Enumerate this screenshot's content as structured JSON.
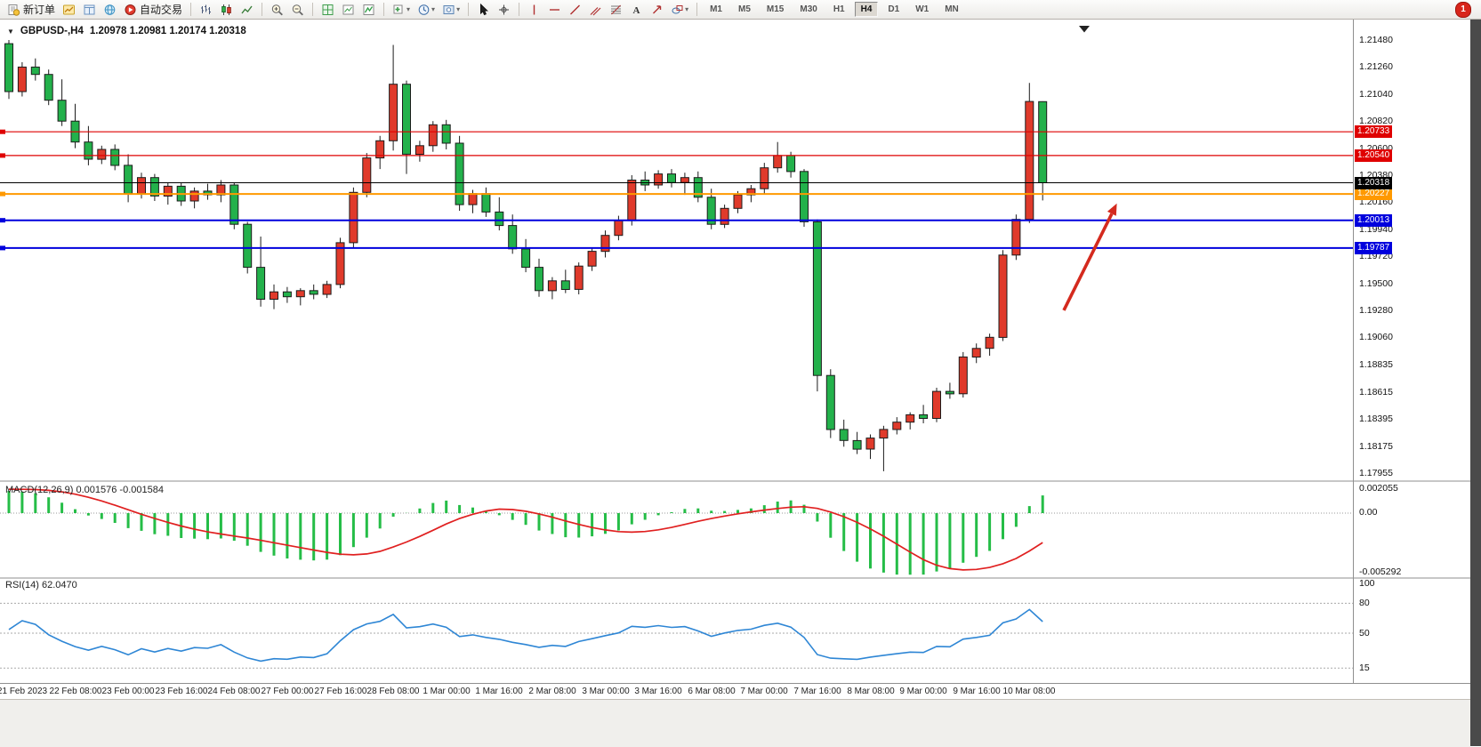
{
  "toolbar": {
    "timeframes": [
      "M1",
      "M5",
      "M15",
      "M30",
      "H1",
      "H4",
      "D1",
      "W1",
      "MN"
    ],
    "active_timeframe": "H4",
    "notification_count": "1",
    "items": [
      {
        "kind": "button",
        "name": "new-order-button",
        "icon": "new-order-icon",
        "label": "新订单"
      },
      {
        "kind": "icon",
        "name": "market-watch-icon"
      },
      {
        "kind": "icon",
        "name": "data-window-icon"
      },
      {
        "kind": "icon",
        "name": "navigator-icon"
      },
      {
        "kind": "button",
        "name": "auto-trading-button",
        "icon": "auto-trading-icon",
        "label": "自动交易"
      },
      {
        "kind": "sep"
      },
      {
        "kind": "icon",
        "name": "bar-chart-icon"
      },
      {
        "kind": "icon",
        "name": "candlestick-chart-icon"
      },
      {
        "kind": "icon",
        "name": "line-chart-icon"
      },
      {
        "kind": "sep"
      },
      {
        "kind": "icon",
        "name": "zoom-in-icon"
      },
      {
        "kind": "icon",
        "name": "zoom-out-icon"
      },
      {
        "kind": "sep"
      },
      {
        "kind": "icon",
        "name": "tile-windows-icon"
      },
      {
        "kind": "icon",
        "name": "chart-window-icon"
      },
      {
        "kind": "icon",
        "name": "indicators-icon"
      },
      {
        "kind": "sep"
      },
      {
        "kind": "icon",
        "name": "new-chart-icon",
        "caret": true
      },
      {
        "kind": "icon",
        "name": "period-icon",
        "caret": true
      },
      {
        "kind": "icon",
        "name": "template-icon",
        "caret": true
      },
      {
        "kind": "sep"
      },
      {
        "kind": "icon",
        "name": "cursor-icon"
      },
      {
        "kind": "icon",
        "name": "crosshair-icon"
      },
      {
        "kind": "sep"
      },
      {
        "kind": "icon",
        "name": "vertical-line-icon"
      },
      {
        "kind": "icon",
        "name": "horizontal-line-icon"
      },
      {
        "kind": "icon",
        "name": "trendline-icon"
      },
      {
        "kind": "icon",
        "name": "equidistant-channel-icon"
      },
      {
        "kind": "icon",
        "name": "fibonacci-icon"
      },
      {
        "kind": "icon",
        "name": "text-icon"
      },
      {
        "kind": "icon",
        "name": "arrows-icon"
      },
      {
        "kind": "icon",
        "name": "shapes-icon",
        "caret": true
      },
      {
        "kind": "sep"
      },
      {
        "kind": "timeframes"
      },
      {
        "kind": "badge",
        "name": "notification-badge"
      }
    ]
  },
  "chart": {
    "symbol_timeframe": "GBPUSD-,H4",
    "ohlc": "1.20978 1.20981 1.20174 1.20318",
    "levels": [
      {
        "label": "1.20733",
        "price": 1.20733,
        "color": "#df0000",
        "width": 1.2
      },
      {
        "label": "1.20540",
        "price": 1.2054,
        "color": "#df0000",
        "width": 1.2
      },
      {
        "label": "1.20227",
        "price": 1.20227,
        "color": "#ff9900",
        "width": 2
      },
      {
        "label": "1.20013",
        "price": 1.20013,
        "color": "#0000dd",
        "width": 2
      },
      {
        "label": "1.19787",
        "price": 1.19787,
        "color": "#0000dd",
        "width": 2
      }
    ],
    "current_price": {
      "label": "1.20318",
      "price": 1.20318,
      "color": "#000000"
    },
    "annotation_arrow": {
      "color": "#d42a1e",
      "from_bar": 79.6,
      "from_price": 1.1928,
      "to_bar": 83.6,
      "to_price": 1.2015
    }
  },
  "chart_data": {
    "type": "candlestick",
    "symbol": "GBPUSD",
    "period": "H4",
    "up_color": "#e03a2b",
    "down_color": "#23b14b",
    "outline_color": "#1c1c1c",
    "y_ticks": [
      "1.21480",
      "1.21260",
      "1.21040",
      "1.20820",
      "1.20600",
      "1.20380",
      "1.20160",
      "1.19940",
      "1.19720",
      "1.19500",
      "1.19280",
      "1.19060",
      "1.18835",
      "1.18615",
      "1.18395",
      "1.18175",
      "1.17955"
    ],
    "x_labels": [
      "21 Feb 2023",
      "22 Feb 08:00",
      "23 Feb 00:00",
      "23 Feb 16:00",
      "24 Feb 08:00",
      "27 Feb 00:00",
      "27 Feb 16:00",
      "28 Feb 08:00",
      "1 Mar 00:00",
      "1 Mar 16:00",
      "2 Mar 08:00",
      "3 Mar 00:00",
      "3 Mar 16:00",
      "6 Mar 08:00",
      "7 Mar 00:00",
      "7 Mar 16:00",
      "8 Mar 08:00",
      "9 Mar 00:00",
      "9 Mar 16:00",
      "10 Mar 08:00"
    ],
    "candles": [
      [
        1.2145,
        1.2148,
        1.21,
        1.2106
      ],
      [
        1.2106,
        1.213,
        1.2102,
        1.2126
      ],
      [
        1.2126,
        1.2133,
        1.2115,
        1.212
      ],
      [
        1.212,
        1.2124,
        1.2095,
        1.2099
      ],
      [
        1.2099,
        1.2116,
        1.2078,
        1.2082
      ],
      [
        1.2082,
        1.2096,
        1.206,
        1.2065
      ],
      [
        1.2065,
        1.2078,
        1.2046,
        1.2051
      ],
      [
        1.2051,
        1.2062,
        1.2047,
        1.2059
      ],
      [
        1.2059,
        1.2063,
        1.2042,
        1.2046
      ],
      [
        1.2046,
        1.2055,
        1.2016,
        1.2023
      ],
      [
        1.2023,
        1.204,
        1.2019,
        1.2036
      ],
      [
        1.2036,
        1.2039,
        1.2017,
        1.2021
      ],
      [
        1.2021,
        1.2032,
        1.2014,
        1.2029
      ],
      [
        1.2029,
        1.2032,
        1.2013,
        1.2017
      ],
      [
        1.2017,
        1.2028,
        1.2011,
        1.2025
      ],
      [
        1.2025,
        1.2031,
        1.2018,
        1.2022
      ],
      [
        1.2022,
        1.2034,
        1.2016,
        1.203
      ],
      [
        1.203,
        1.2032,
        1.1994,
        1.1998
      ],
      [
        1.1998,
        1.2,
        1.1958,
        1.1963
      ],
      [
        1.1963,
        1.1988,
        1.1931,
        1.1937
      ],
      [
        1.1937,
        1.1949,
        1.1929,
        1.1943
      ],
      [
        1.1943,
        1.1947,
        1.1934,
        1.1939
      ],
      [
        1.1939,
        1.1946,
        1.1932,
        1.1944
      ],
      [
        1.1944,
        1.1949,
        1.1937,
        1.1941
      ],
      [
        1.1941,
        1.1952,
        1.1938,
        1.1949
      ],
      [
        1.1949,
        1.1987,
        1.1946,
        1.1983
      ],
      [
        1.1983,
        1.2028,
        1.1979,
        1.2024
      ],
      [
        1.2024,
        1.2056,
        1.202,
        1.2052
      ],
      [
        1.2052,
        1.207,
        1.2043,
        1.2066
      ],
      [
        1.2066,
        1.2144,
        1.2058,
        1.2112
      ],
      [
        1.2112,
        1.2115,
        1.2039,
        1.2055
      ],
      [
        1.2055,
        1.2066,
        1.2049,
        1.2062
      ],
      [
        1.2062,
        1.2082,
        1.2057,
        1.2079
      ],
      [
        1.2079,
        1.2083,
        1.2059,
        1.2064
      ],
      [
        1.2064,
        1.207,
        1.2009,
        1.2014
      ],
      [
        1.2014,
        1.2026,
        1.2007,
        1.2023
      ],
      [
        1.2023,
        1.2028,
        1.2004,
        1.2008
      ],
      [
        1.2008,
        1.202,
        1.1993,
        1.1997
      ],
      [
        1.1997,
        1.2006,
        1.1974,
        1.1978
      ],
      [
        1.1978,
        1.1986,
        1.1959,
        1.1963
      ],
      [
        1.1963,
        1.197,
        1.1939,
        1.1944
      ],
      [
        1.1944,
        1.1955,
        1.1937,
        1.1952
      ],
      [
        1.1952,
        1.1961,
        1.1942,
        1.1945
      ],
      [
        1.1945,
        1.1967,
        1.1941,
        1.1964
      ],
      [
        1.1964,
        1.1979,
        1.196,
        1.1976
      ],
      [
        1.1976,
        1.1993,
        1.1971,
        1.1989
      ],
      [
        1.1989,
        1.2005,
        1.1985,
        1.2001
      ],
      [
        1.2001,
        1.2038,
        1.1997,
        1.2034
      ],
      [
        1.2034,
        1.2041,
        1.2025,
        1.203
      ],
      [
        1.203,
        1.2042,
        1.2027,
        1.2039
      ],
      [
        1.2039,
        1.2043,
        1.2028,
        1.2032
      ],
      [
        1.2032,
        1.204,
        1.2022,
        1.2036
      ],
      [
        1.2036,
        1.2041,
        1.2016,
        1.202
      ],
      [
        1.202,
        1.2027,
        1.1994,
        1.1998
      ],
      [
        1.1998,
        1.2014,
        1.1995,
        1.2011
      ],
      [
        1.2011,
        1.2025,
        1.2007,
        1.2022
      ],
      [
        1.2022,
        1.203,
        1.2016,
        1.2027
      ],
      [
        1.2027,
        1.2048,
        1.2023,
        1.2044
      ],
      [
        1.2044,
        1.2065,
        1.204,
        1.2054
      ],
      [
        1.2054,
        1.2057,
        1.2036,
        1.2041
      ],
      [
        1.2041,
        1.2043,
        1.1996,
        1.2
      ],
      [
        1.2,
        1.2002,
        1.1862,
        1.1875
      ],
      [
        1.1875,
        1.188,
        1.1824,
        1.1831
      ],
      [
        1.1831,
        1.1839,
        1.1817,
        1.1822
      ],
      [
        1.1822,
        1.1829,
        1.1811,
        1.1815
      ],
      [
        1.1815,
        1.1827,
        1.1807,
        1.1824
      ],
      [
        1.1824,
        1.1834,
        1.1797,
        1.1831
      ],
      [
        1.1831,
        1.1841,
        1.1827,
        1.1837
      ],
      [
        1.1837,
        1.1845,
        1.1831,
        1.1843
      ],
      [
        1.1843,
        1.1851,
        1.1836,
        1.184
      ],
      [
        1.184,
        1.1865,
        1.1837,
        1.1862
      ],
      [
        1.1862,
        1.1869,
        1.1856,
        1.186
      ],
      [
        1.186,
        1.1894,
        1.1857,
        1.189
      ],
      [
        1.189,
        1.1901,
        1.1885,
        1.1897
      ],
      [
        1.1897,
        1.1909,
        1.1891,
        1.1906
      ],
      [
        1.1906,
        1.1977,
        1.1903,
        1.1973
      ],
      [
        1.1973,
        1.2006,
        1.1969,
        1.2002
      ],
      [
        1.2002,
        1.2113,
        1.1999,
        1.2098
      ],
      [
        1.20978,
        1.20981,
        1.20174,
        1.20318
      ]
    ]
  },
  "indicators": {
    "macd": {
      "name": "MACD(12,26,9)",
      "values_text": "0.001576 -0.001584",
      "axis_labels": [
        "0.002055",
        "0.00",
        "-0.005292"
      ],
      "histogram_color": "#25bd47",
      "signal_color": "#e02020"
    },
    "rsi": {
      "name": "RSI(14)",
      "value": "62.0470",
      "axis_labels": [
        "100",
        "80",
        "50",
        "15"
      ],
      "levels": [
        80,
        50,
        15
      ],
      "line_color": "#2e86d5"
    }
  }
}
